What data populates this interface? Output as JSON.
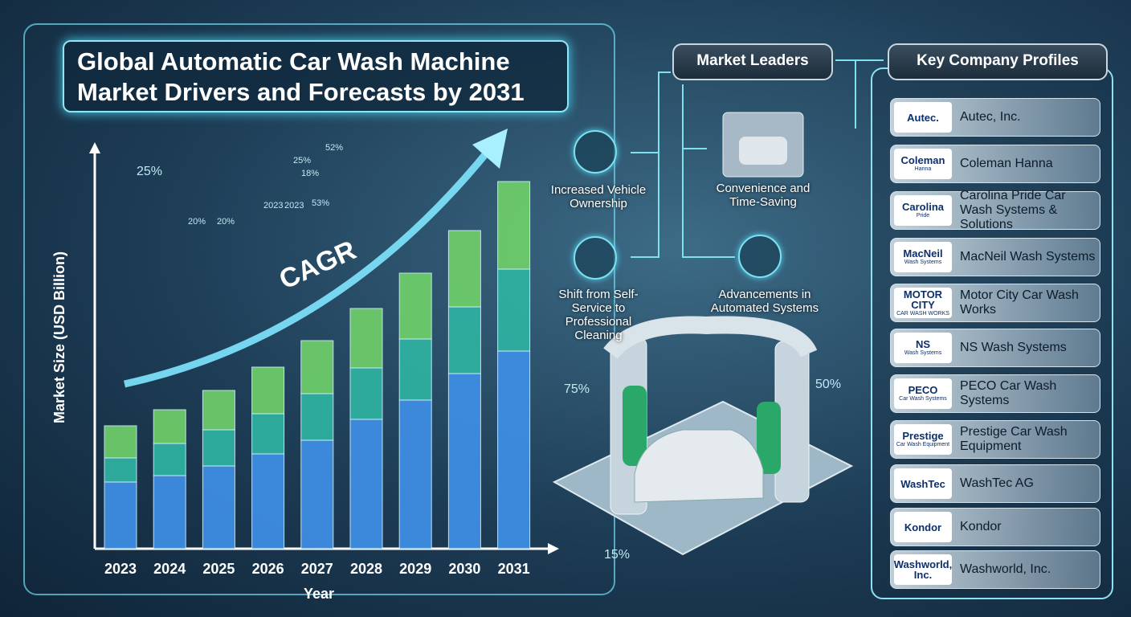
{
  "title_lines": [
    "Global Automatic Car Wash Machine",
    "Market Drivers and Forecasts by 2031"
  ],
  "chart_data": {
    "type": "bar",
    "stacked": true,
    "x_label": "Year",
    "y_label": "Market Size (USD Billion)",
    "annotation": "CAGR",
    "categories": [
      "2023",
      "2024",
      "2025",
      "2026",
      "2027",
      "2028",
      "2029",
      "2030",
      "2031"
    ],
    "series": [
      {
        "color": "#3f8fe6",
        "values": [
          83,
          91,
          103,
          118,
          135,
          161,
          185,
          218,
          246
        ]
      },
      {
        "color": "#2fb3a2",
        "values": [
          30,
          40,
          45,
          50,
          58,
          64,
          76,
          83,
          102
        ]
      },
      {
        "color": "#6fcf6a",
        "values": [
          40,
          42,
          49,
          58,
          66,
          74,
          82,
          95,
          109
        ]
      }
    ],
    "ylim": [
      0,
      500
    ]
  },
  "drivers": {
    "heading": "Market Leaders",
    "items": [
      "Increased Vehicle Ownership",
      "Shift from Self-Service to Professional Cleaning",
      "Convenience and Time-Saving",
      "Advancements in Automated Systems"
    ]
  },
  "profiles": {
    "heading": "Key Company Profiles",
    "companies": [
      {
        "logo": [
          "Autec."
        ],
        "name": "Autec, Inc."
      },
      {
        "logo": [
          "Coleman",
          "Hanna"
        ],
        "name": "Coleman Hanna"
      },
      {
        "logo": [
          "Carolina",
          "Pride"
        ],
        "name": "Carolina Pride Car Wash Systems & Solutions"
      },
      {
        "logo": [
          "MacNeil",
          "Wash Systems"
        ],
        "name": "MacNeil Wash Systems"
      },
      {
        "logo": [
          "MOTOR CITY",
          "CAR WASH WORKS"
        ],
        "name": "Motor City Car Wash Works"
      },
      {
        "logo": [
          "NS",
          "Wash Systems"
        ],
        "name": "NS Wash Systems"
      },
      {
        "logo": [
          "PECO",
          "Car Wash Systems"
        ],
        "name": "PECO Car Wash Systems"
      },
      {
        "logo": [
          "Prestige",
          "Car Wash Equipment"
        ],
        "name": "Prestige Car Wash Equipment"
      },
      {
        "logo": [
          "WashTec"
        ],
        "name": "WashTec AG"
      },
      {
        "logo": [
          "Kondor"
        ],
        "name": "Kondor"
      },
      {
        "logo": [
          "Washworld, Inc."
        ],
        "name": "Washworld, Inc."
      }
    ]
  },
  "decor_labels": [
    "25%",
    "52%",
    "25%",
    "18%",
    "2023",
    "2023",
    "53%",
    "20%",
    "20%",
    "75%",
    "50%",
    "15%"
  ]
}
